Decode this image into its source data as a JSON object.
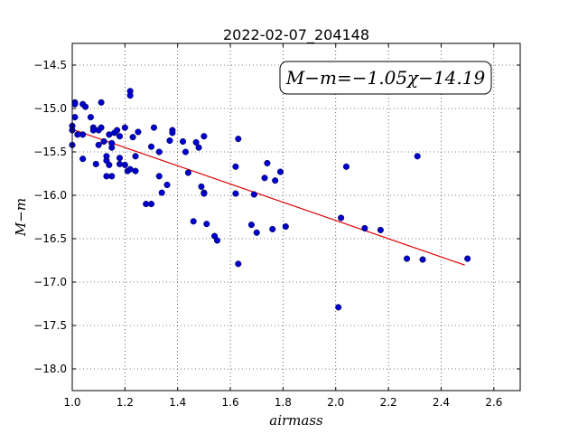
{
  "chart_data": {
    "type": "scatter",
    "title": "2022-02-07_204148",
    "xlabel": "airmass",
    "ylabel": "M−m",
    "xlim": [
      1.0,
      2.7
    ],
    "ylim": [
      -18.25,
      -14.25
    ],
    "y_inverted": true,
    "grid": true,
    "grid_style": "dotted",
    "x_ticks": [
      1.0,
      1.2,
      1.4,
      1.6,
      1.8,
      2.0,
      2.2,
      2.4,
      2.6
    ],
    "x_tick_labels": [
      "1.0",
      "1.2",
      "1.4",
      "1.6",
      "1.8",
      "2.0",
      "2.2",
      "2.4",
      "2.6"
    ],
    "y_ticks": [
      -14.5,
      -15.0,
      -15.5,
      -16.0,
      -16.5,
      -17.0,
      -17.5,
      -18.0
    ],
    "y_tick_labels": [
      "−14.5",
      "−15.0",
      "−15.5",
      "−16.0",
      "−16.5",
      "−17.0",
      "−17.5",
      "−18.0"
    ],
    "annotation": "M−m=−1.05χ−14.19",
    "annotation_placement": "top-right",
    "point_color": "#0000cc",
    "line_color": "#dd0000",
    "fit": {
      "slope": -1.05,
      "intercept": -14.19,
      "x_range": [
        1.0,
        2.49
      ]
    },
    "points": [
      [
        1.0,
        -15.2
      ],
      [
        1.01,
        -14.93
      ],
      [
        1.01,
        -14.95
      ],
      [
        1.01,
        -15.1
      ],
      [
        1.0,
        -15.25
      ],
      [
        1.02,
        -15.3
      ],
      [
        1.0,
        -15.42
      ],
      [
        1.04,
        -15.3
      ],
      [
        1.04,
        -14.95
      ],
      [
        1.05,
        -14.98
      ],
      [
        1.04,
        -15.58
      ],
      [
        1.07,
        -15.1
      ],
      [
        1.08,
        -15.22
      ],
      [
        1.08,
        -15.25
      ],
      [
        1.09,
        -15.64
      ],
      [
        1.1,
        -15.42
      ],
      [
        1.1,
        -15.25
      ],
      [
        1.11,
        -15.22
      ],
      [
        1.11,
        -14.93
      ],
      [
        1.12,
        -15.38
      ],
      [
        1.13,
        -15.6
      ],
      [
        1.13,
        -15.55
      ],
      [
        1.14,
        -15.3
      ],
      [
        1.14,
        -15.65
      ],
      [
        1.13,
        -15.78
      ],
      [
        1.15,
        -15.45
      ],
      [
        1.15,
        -15.78
      ],
      [
        1.15,
        -15.4
      ],
      [
        1.16,
        -15.28
      ],
      [
        1.17,
        -15.25
      ],
      [
        1.18,
        -15.57
      ],
      [
        1.18,
        -15.64
      ],
      [
        1.18,
        -15.32
      ],
      [
        1.2,
        -15.22
      ],
      [
        1.2,
        -15.65
      ],
      [
        1.21,
        -15.72
      ],
      [
        1.22,
        -14.8
      ],
      [
        1.22,
        -14.85
      ],
      [
        1.22,
        -15.7
      ],
      [
        1.23,
        -15.33
      ],
      [
        1.24,
        -15.72
      ],
      [
        1.24,
        -15.55
      ],
      [
        1.25,
        -15.27
      ],
      [
        1.28,
        -16.1
      ],
      [
        1.3,
        -16.1
      ],
      [
        1.3,
        -15.44
      ],
      [
        1.31,
        -15.22
      ],
      [
        1.33,
        -15.5
      ],
      [
        1.33,
        -15.78
      ],
      [
        1.34,
        -15.97
      ],
      [
        1.36,
        -15.88
      ],
      [
        1.37,
        -15.37
      ],
      [
        1.38,
        -15.25
      ],
      [
        1.38,
        -15.28
      ],
      [
        1.42,
        -15.38
      ],
      [
        1.43,
        -15.5
      ],
      [
        1.44,
        -15.74
      ],
      [
        1.46,
        -16.3
      ],
      [
        1.47,
        -15.39
      ],
      [
        1.48,
        -15.45
      ],
      [
        1.49,
        -15.9
      ],
      [
        1.5,
        -15.97
      ],
      [
        1.5,
        -15.32
      ],
      [
        1.5,
        -15.98
      ],
      [
        1.51,
        -16.33
      ],
      [
        1.54,
        -16.47
      ],
      [
        1.55,
        -16.52
      ],
      [
        1.62,
        -15.98
      ],
      [
        1.62,
        -15.67
      ],
      [
        1.63,
        -15.35
      ],
      [
        1.63,
        -16.79
      ],
      [
        1.68,
        -16.34
      ],
      [
        1.69,
        -15.99
      ],
      [
        1.7,
        -16.43
      ],
      [
        1.73,
        -15.8
      ],
      [
        1.74,
        -15.63
      ],
      [
        1.76,
        -16.39
      ],
      [
        1.77,
        -15.83
      ],
      [
        1.79,
        -15.73
      ],
      [
        1.81,
        -16.36
      ],
      [
        2.01,
        -17.29
      ],
      [
        2.02,
        -16.26
      ],
      [
        2.04,
        -15.67
      ],
      [
        2.11,
        -16.38
      ],
      [
        2.17,
        -16.4
      ],
      [
        2.27,
        -16.73
      ],
      [
        2.31,
        -15.55
      ],
      [
        2.33,
        -16.74
      ],
      [
        2.5,
        -16.73
      ]
    ]
  }
}
